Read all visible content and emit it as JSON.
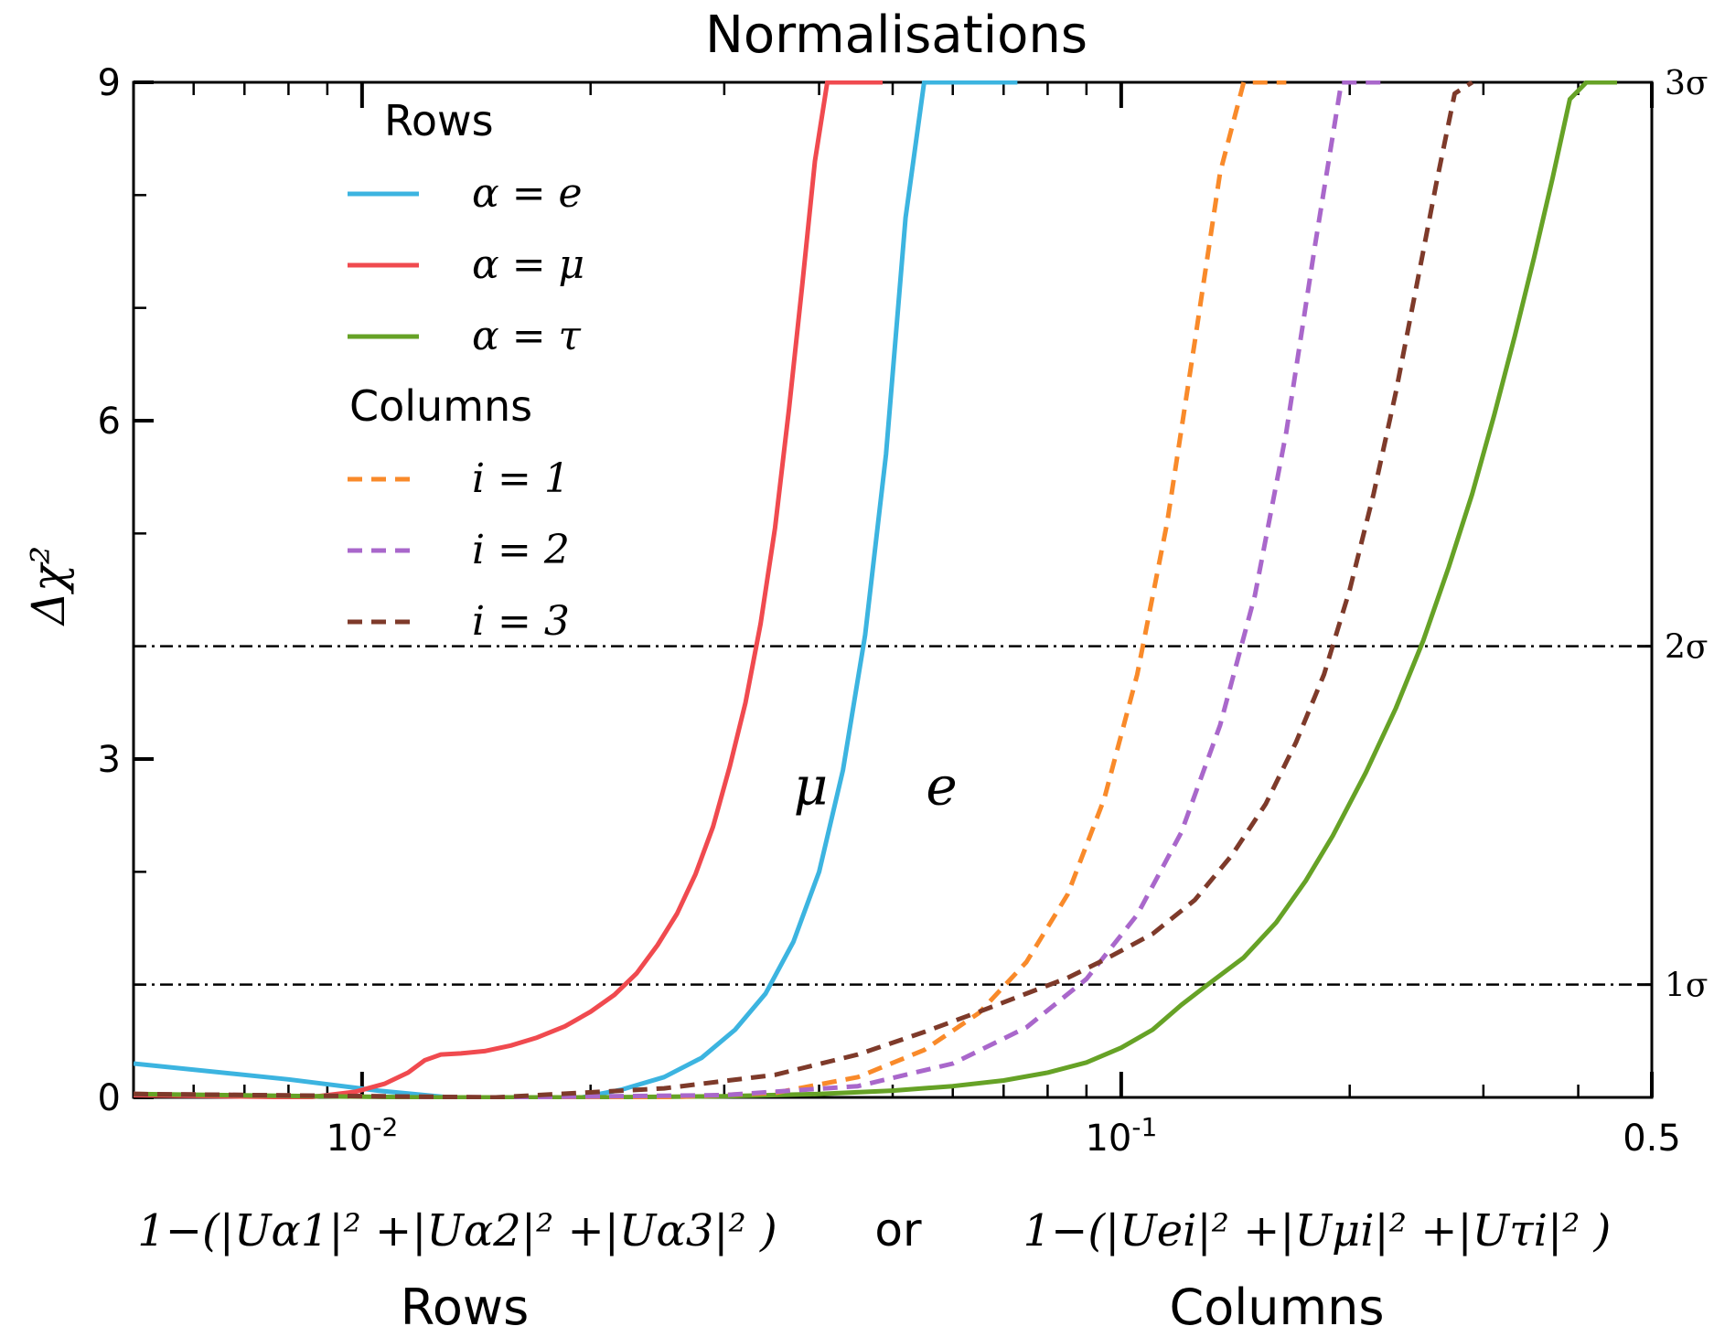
{
  "chart_data": {
    "type": "line",
    "title": "Normalisations",
    "ylabel_html": "Δχ²",
    "xscale": "log",
    "xlim": [
      0.005,
      0.5
    ],
    "ylim": [
      0,
      9
    ],
    "x_ticks": [
      {
        "value": 0.01,
        "base": "10",
        "exp": "-2"
      },
      {
        "value": 0.1,
        "base": "10",
        "exp": "-1"
      },
      {
        "value": 0.5,
        "label": "0.5"
      }
    ],
    "y_ticks": [
      {
        "value": 0,
        "label": "0"
      },
      {
        "value": 3,
        "label": "3"
      },
      {
        "value": 6,
        "label": "6"
      },
      {
        "value": 9,
        "label": "9"
      }
    ],
    "right_ticks": [
      {
        "value": 1,
        "label": "1σ"
      },
      {
        "value": 4,
        "label": "2σ"
      },
      {
        "value": 9,
        "label": "3σ"
      }
    ],
    "reference_lines": [
      1,
      4
    ],
    "xlabel_rows_formula": "1−(|Uα1|² +|Uα2|² +|Uα3|² )",
    "xlabel_or": "or",
    "xlabel_cols_formula": "1−(|Uei|² +|Uμi|² +|Uτi|² )",
    "xlabel_rows": "Rows",
    "xlabel_cols": "Columns",
    "annotations": [
      {
        "text": "μ",
        "x": 0.039,
        "y": 2.6
      },
      {
        "text": "e",
        "x": 0.058,
        "y": 2.6
      }
    ],
    "legend": {
      "placement": "upper-left",
      "rows_header": "Rows",
      "columns_header": "Columns"
    },
    "series": [
      {
        "name": "α = e",
        "group": "rows",
        "color": "#3cb4e0",
        "dash": "solid",
        "x": [
          0.005,
          0.008,
          0.0105,
          0.013,
          0.016,
          0.0195,
          0.022,
          0.025,
          0.028,
          0.031,
          0.034,
          0.037,
          0.04,
          0.043,
          0.046,
          0.049,
          0.052,
          0.055,
          0.058,
          0.061,
          0.064,
          0.067,
          0.07,
          0.073
        ],
        "y": [
          0.3,
          0.16,
          0.06,
          0.0,
          0.0,
          0.0,
          0.07,
          0.18,
          0.35,
          0.6,
          0.92,
          1.38,
          2.0,
          2.9,
          4.1,
          5.7,
          7.8,
          9.0,
          9.0,
          9.0,
          9.0,
          9.0,
          9.0,
          9.0
        ]
      },
      {
        "name": "α = μ",
        "group": "rows",
        "color": "#f04a4f",
        "dash": "solid",
        "x": [
          0.005,
          0.0085,
          0.0098,
          0.0107,
          0.0115,
          0.0121,
          0.0127,
          0.0135,
          0.0145,
          0.0157,
          0.017,
          0.0185,
          0.02,
          0.0215,
          0.023,
          0.0245,
          0.026,
          0.0275,
          0.029,
          0.0305,
          0.032,
          0.0335,
          0.035,
          0.0365,
          0.038,
          0.0395,
          0.041,
          0.0425,
          0.044,
          0.0455,
          0.047,
          0.0485
        ],
        "y": [
          0.02,
          0.0,
          0.05,
          0.12,
          0.22,
          0.33,
          0.38,
          0.39,
          0.41,
          0.46,
          0.53,
          0.63,
          0.76,
          0.91,
          1.1,
          1.35,
          1.63,
          1.98,
          2.4,
          2.93,
          3.5,
          4.2,
          5.05,
          6.1,
          7.2,
          8.3,
          9.0,
          9.0,
          9.0,
          9.0,
          9.0,
          9.0
        ]
      },
      {
        "name": "α = τ",
        "group": "rows",
        "color": "#66a226",
        "dash": "solid",
        "x": [
          0.005,
          0.012,
          0.02,
          0.03,
          0.04,
          0.05,
          0.06,
          0.07,
          0.08,
          0.09,
          0.1,
          0.11,
          0.12,
          0.13,
          0.145,
          0.16,
          0.175,
          0.19,
          0.21,
          0.23,
          0.25,
          0.27,
          0.29,
          0.31,
          0.33,
          0.35,
          0.37,
          0.39,
          0.41,
          0.43,
          0.45
        ],
        "y": [
          0.03,
          0.0,
          0.0,
          0.01,
          0.03,
          0.06,
          0.1,
          0.15,
          0.22,
          0.31,
          0.44,
          0.6,
          0.82,
          1.0,
          1.24,
          1.55,
          1.92,
          2.32,
          2.88,
          3.45,
          4.05,
          4.7,
          5.35,
          6.05,
          6.75,
          7.45,
          8.15,
          8.85,
          9.0,
          9.0,
          9.0
        ]
      },
      {
        "name": "i = 1",
        "group": "columns",
        "color": "#f98a2a",
        "dash": "dashed",
        "x": [
          0.005,
          0.015,
          0.025,
          0.035,
          0.045,
          0.055,
          0.065,
          0.075,
          0.085,
          0.095,
          0.105,
          0.115,
          0.125,
          0.135,
          0.145,
          0.155,
          0.165
        ],
        "y": [
          0.03,
          0.0,
          0.0,
          0.04,
          0.18,
          0.42,
          0.75,
          1.2,
          1.8,
          2.65,
          3.75,
          5.1,
          6.7,
          8.2,
          9.0,
          9.0,
          9.0
        ]
      },
      {
        "name": "i = 2",
        "group": "columns",
        "color": "#a967cb",
        "dash": "dashed",
        "x": [
          0.005,
          0.015,
          0.03,
          0.045,
          0.06,
          0.075,
          0.09,
          0.105,
          0.12,
          0.135,
          0.15,
          0.165,
          0.18,
          0.195,
          0.21,
          0.225
        ],
        "y": [
          0.03,
          0.0,
          0.02,
          0.1,
          0.3,
          0.62,
          1.05,
          1.62,
          2.35,
          3.3,
          4.45,
          5.9,
          7.55,
          9.0,
          9.0,
          9.0
        ]
      },
      {
        "name": "i = 3",
        "group": "columns",
        "color": "#7e3a2a",
        "dash": "dashed",
        "x": [
          0.005,
          0.015,
          0.025,
          0.035,
          0.045,
          0.055,
          0.065,
          0.075,
          0.085,
          0.095,
          0.11,
          0.125,
          0.14,
          0.155,
          0.17,
          0.185,
          0.2,
          0.215,
          0.23,
          0.245,
          0.26,
          0.275,
          0.29
        ],
        "y": [
          0.03,
          0.0,
          0.08,
          0.2,
          0.38,
          0.58,
          0.76,
          0.92,
          1.06,
          1.22,
          1.45,
          1.75,
          2.15,
          2.6,
          3.15,
          3.75,
          4.5,
          5.35,
          6.25,
          7.2,
          8.1,
          8.9,
          9.0
        ]
      }
    ]
  }
}
